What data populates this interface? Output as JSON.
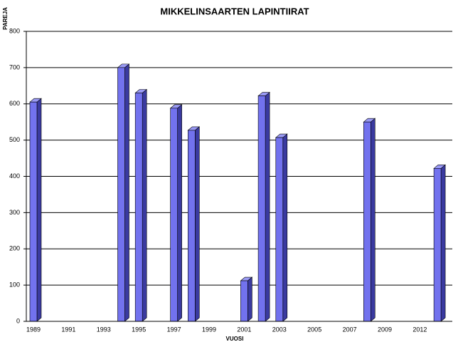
{
  "chart_data": {
    "type": "bar",
    "title": "MIKKELINSAARTEN LAPINTIIRAT",
    "y_label": "PAREJA",
    "x_label": "VUOSI",
    "categories": [
      "1989",
      null,
      "1991",
      null,
      "1993",
      null,
      "1995",
      null,
      "1997",
      null,
      "1999",
      null,
      "2001",
      null,
      "2003",
      null,
      "2005",
      null,
      "2007",
      null,
      "2009",
      null,
      "2012",
      null
    ],
    "values": [
      605,
      null,
      null,
      null,
      null,
      700,
      630,
      null,
      588,
      527,
      null,
      null,
      112,
      622,
      507,
      null,
      null,
      null,
      null,
      550,
      null,
      null,
      null,
      422
    ],
    "color": "#7272ee",
    "ylim": [
      0,
      800
    ],
    "yticks": [
      0,
      100,
      200,
      300,
      400,
      500,
      600,
      700,
      800
    ],
    "grid": true
  }
}
